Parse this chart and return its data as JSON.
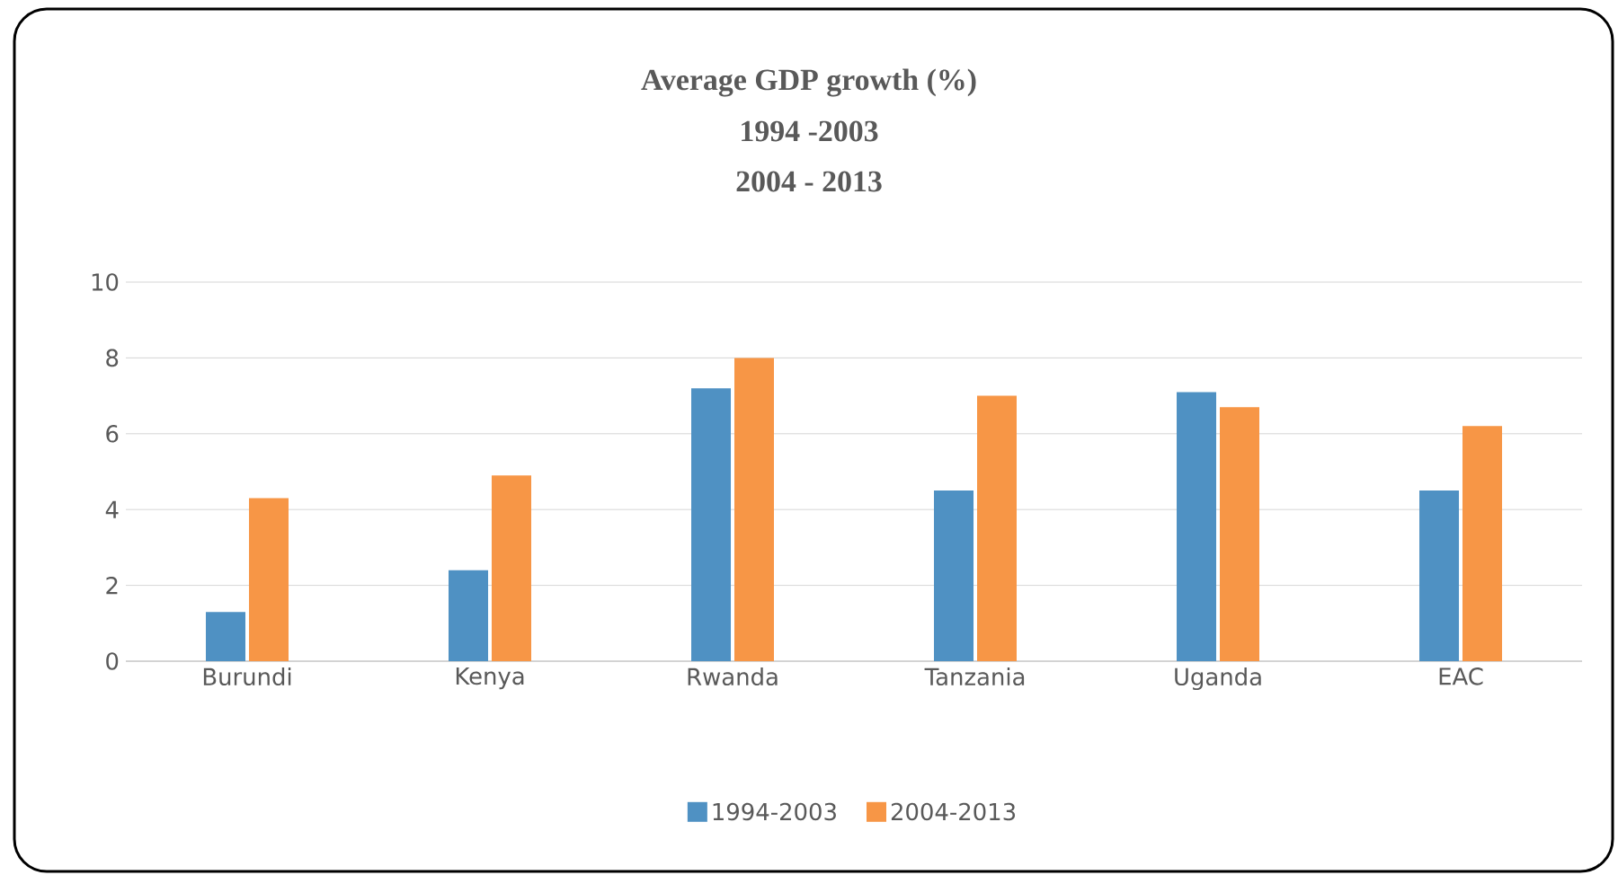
{
  "chart_data": {
    "type": "bar",
    "title": "Average GDP growth (%)",
    "annotations": [
      "1994 -2003",
      "2004 - 2013"
    ],
    "categories": [
      "Burundi",
      "Kenya",
      "Rwanda",
      "Tanzania",
      "Uganda",
      "EAC"
    ],
    "series": [
      {
        "name": "1994-2003",
        "color": "#4f91c3",
        "values": [
          1.3,
          2.4,
          7.2,
          4.5,
          7.1,
          4.5
        ]
      },
      {
        "name": "2004-2013",
        "color": "#f79646",
        "values": [
          4.3,
          4.9,
          8.0,
          7.0,
          6.7,
          6.2
        ]
      }
    ],
    "ylim": [
      0,
      10
    ],
    "yticks": [
      0,
      2,
      4,
      6,
      8,
      10
    ],
    "grid": "y",
    "legend": "bottom"
  }
}
